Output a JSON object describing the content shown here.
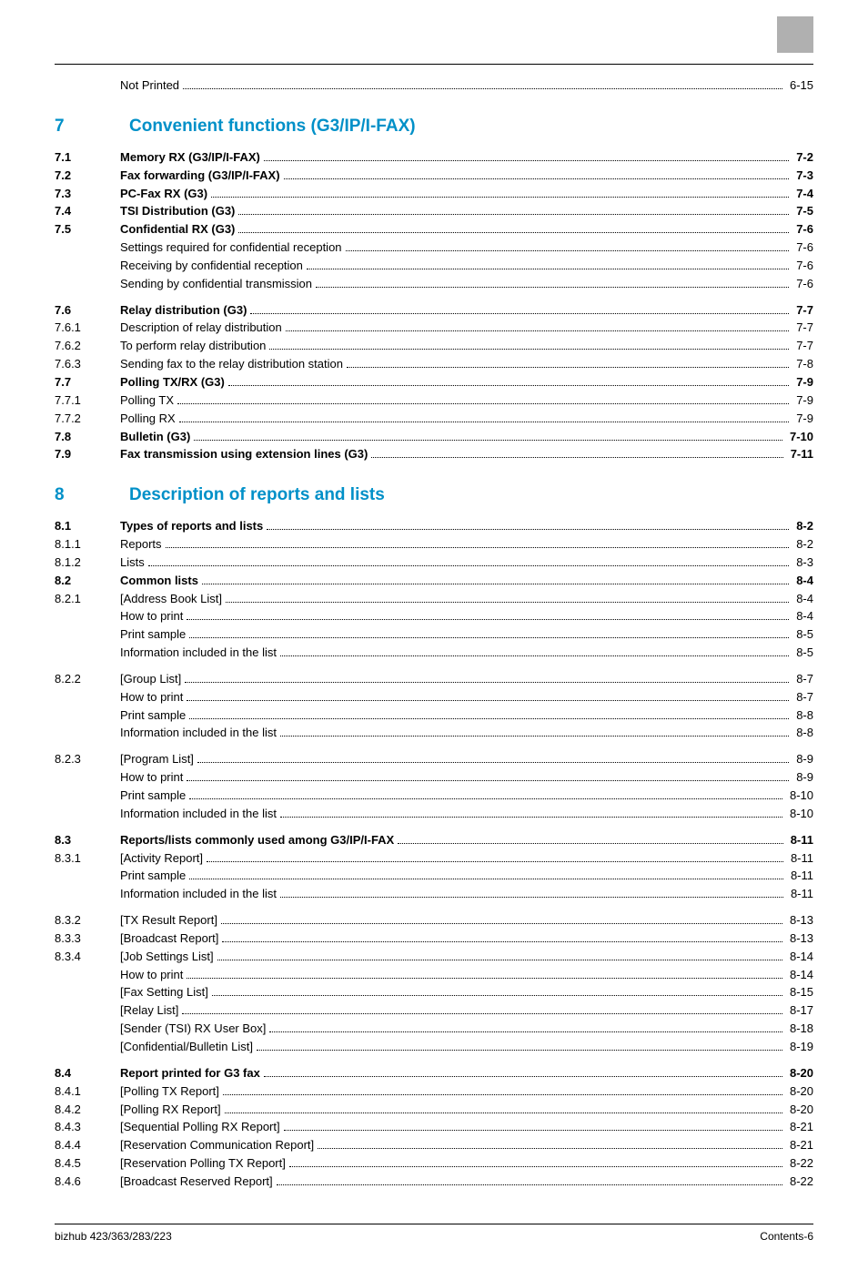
{
  "orphan": {
    "title": "Not Printed",
    "page": "6-15"
  },
  "chapters": [
    {
      "num": "7",
      "title": "Convenient functions (G3/IP/I-FAX)",
      "rows": [
        {
          "n": "7.1",
          "t": "Memory RX (G3/IP/I-FAX)",
          "p": "7-2",
          "bold": true
        },
        {
          "n": "7.2",
          "t": "Fax forwarding (G3/IP/I-FAX)",
          "p": "7-3",
          "bold": true
        },
        {
          "n": "7.3",
          "t": "PC-Fax RX (G3)",
          "p": "7-4",
          "bold": true
        },
        {
          "n": "7.4",
          "t": "TSI Distribution (G3)",
          "p": "7-5",
          "bold": true
        },
        {
          "n": "7.5",
          "t": "Confidential RX (G3)",
          "p": "7-6",
          "bold": true
        },
        {
          "n": "",
          "t": "Settings required for confidential reception",
          "p": "7-6"
        },
        {
          "n": "",
          "t": "Receiving by confidential reception",
          "p": "7-6"
        },
        {
          "n": "",
          "t": "Sending by confidential transmission",
          "p": "7-6"
        },
        {
          "n": "7.6",
          "t": "Relay distribution (G3)",
          "p": "7-7",
          "bold": true,
          "gap": true
        },
        {
          "n": "7.6.1",
          "t": "Description of relay distribution",
          "p": "7-7"
        },
        {
          "n": "7.6.2",
          "t": "To perform relay distribution",
          "p": "7-7"
        },
        {
          "n": "7.6.3",
          "t": "Sending fax to the relay distribution station",
          "p": "7-8"
        },
        {
          "n": "7.7",
          "t": "Polling TX/RX (G3)",
          "p": "7-9",
          "bold": true
        },
        {
          "n": "7.7.1",
          "t": "Polling TX",
          "p": "7-9"
        },
        {
          "n": "7.7.2",
          "t": "Polling RX",
          "p": "7-9"
        },
        {
          "n": "7.8",
          "t": "Bulletin (G3)",
          "p": "7-10",
          "bold": true
        },
        {
          "n": "7.9",
          "t": "Fax transmission using extension lines (G3)",
          "p": "7-11",
          "bold": true
        }
      ]
    },
    {
      "num": "8",
      "title": "Description of reports and lists",
      "rows": [
        {
          "n": "8.1",
          "t": "Types of reports and lists",
          "p": "8-2",
          "bold": true
        },
        {
          "n": "8.1.1",
          "t": "Reports",
          "p": "8-2"
        },
        {
          "n": "8.1.2",
          "t": "Lists",
          "p": "8-3"
        },
        {
          "n": "8.2",
          "t": "Common lists",
          "p": "8-4",
          "bold": true
        },
        {
          "n": "8.2.1",
          "t": "[Address Book List]",
          "p": "8-4"
        },
        {
          "n": "",
          "t": "How to print",
          "p": "8-4"
        },
        {
          "n": "",
          "t": "Print sample",
          "p": "8-5"
        },
        {
          "n": "",
          "t": "Information included in the list",
          "p": "8-5"
        },
        {
          "n": "8.2.2",
          "t": "[Group List]",
          "p": "8-7",
          "gap": true
        },
        {
          "n": "",
          "t": "How to print",
          "p": "8-7"
        },
        {
          "n": "",
          "t": "Print sample",
          "p": "8-8"
        },
        {
          "n": "",
          "t": "Information included in the list",
          "p": "8-8"
        },
        {
          "n": "8.2.3",
          "t": "[Program List]",
          "p": "8-9",
          "gap": true
        },
        {
          "n": "",
          "t": "How to print",
          "p": "8-9"
        },
        {
          "n": "",
          "t": "Print sample",
          "p": "8-10"
        },
        {
          "n": "",
          "t": "Information included in the list",
          "p": "8-10"
        },
        {
          "n": "8.3",
          "t": "Reports/lists commonly used among G3/IP/I-FAX",
          "p": "8-11",
          "bold": true,
          "gap": true
        },
        {
          "n": "8.3.1",
          "t": "[Activity Report]",
          "p": "8-11"
        },
        {
          "n": "",
          "t": "Print sample",
          "p": "8-11"
        },
        {
          "n": "",
          "t": "Information included in the list",
          "p": "8-11"
        },
        {
          "n": "8.3.2",
          "t": "[TX Result Report]",
          "p": "8-13",
          "gap": true
        },
        {
          "n": "8.3.3",
          "t": "[Broadcast Report]",
          "p": "8-13"
        },
        {
          "n": "8.3.4",
          "t": "[Job Settings List]",
          "p": "8-14"
        },
        {
          "n": "",
          "t": "How to print",
          "p": "8-14"
        },
        {
          "n": "",
          "t": "[Fax Setting List]",
          "p": "8-15"
        },
        {
          "n": "",
          "t": "[Relay List]",
          "p": "8-17"
        },
        {
          "n": "",
          "t": "[Sender (TSI) RX User Box]",
          "p": "8-18"
        },
        {
          "n": "",
          "t": "[Confidential/Bulletin List]",
          "p": "8-19"
        },
        {
          "n": "8.4",
          "t": "Report printed for G3 fax",
          "p": "8-20",
          "bold": true,
          "gap": true
        },
        {
          "n": "8.4.1",
          "t": "[Polling TX Report]",
          "p": "8-20"
        },
        {
          "n": "8.4.2",
          "t": "[Polling RX Report]",
          "p": "8-20"
        },
        {
          "n": "8.4.3",
          "t": "[Sequential Polling RX Report]",
          "p": "8-21"
        },
        {
          "n": "8.4.4",
          "t": "[Reservation Communication Report]",
          "p": "8-21"
        },
        {
          "n": "8.4.5",
          "t": "[Reservation Polling TX Report]",
          "p": "8-22"
        },
        {
          "n": "8.4.6",
          "t": "[Broadcast Reserved Report]",
          "p": "8-22"
        }
      ]
    }
  ],
  "footer": {
    "left": "bizhub 423/363/283/223",
    "right": "Contents-6"
  }
}
